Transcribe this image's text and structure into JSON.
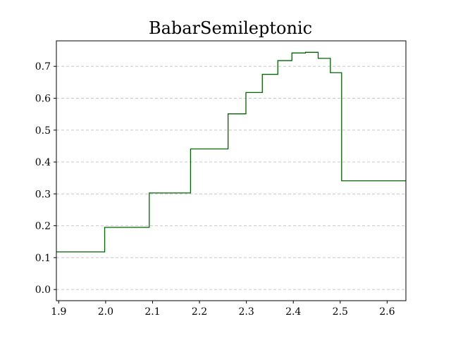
{
  "chart_data": {
    "type": "line",
    "step": "post",
    "title": "BabarSemileptonic",
    "xlabel": "",
    "ylabel": "",
    "xlim": [
      1.895,
      2.64
    ],
    "ylim": [
      -0.035,
      0.78
    ],
    "grid": {
      "y": true,
      "x": false,
      "style": "dashed"
    },
    "legend": "none",
    "color": "#006400",
    "xticks": [
      1.9,
      2.0,
      2.1,
      2.2,
      2.3,
      2.4,
      2.5,
      2.6
    ],
    "xtick_labels": [
      "1.9",
      "2.0",
      "2.1",
      "2.2",
      "2.3",
      "2.4",
      "2.5",
      "2.6"
    ],
    "yticks": [
      0.0,
      0.1,
      0.2,
      0.3,
      0.4,
      0.5,
      0.6,
      0.7
    ],
    "ytick_labels": [
      "0.0",
      "0.1",
      "0.2",
      "0.3",
      "0.4",
      "0.5",
      "0.6",
      "0.7"
    ],
    "series": [
      {
        "x": [
          1.895,
          1.998,
          2.093,
          2.181,
          2.261,
          2.299,
          2.334,
          2.367,
          2.397,
          2.426,
          2.453,
          2.479,
          2.503,
          2.64
        ],
        "values": [
          0.118,
          0.195,
          0.303,
          0.441,
          0.551,
          0.618,
          0.675,
          0.718,
          0.742,
          0.744,
          0.725,
          0.68,
          0.341,
          0.341
        ]
      }
    ]
  }
}
